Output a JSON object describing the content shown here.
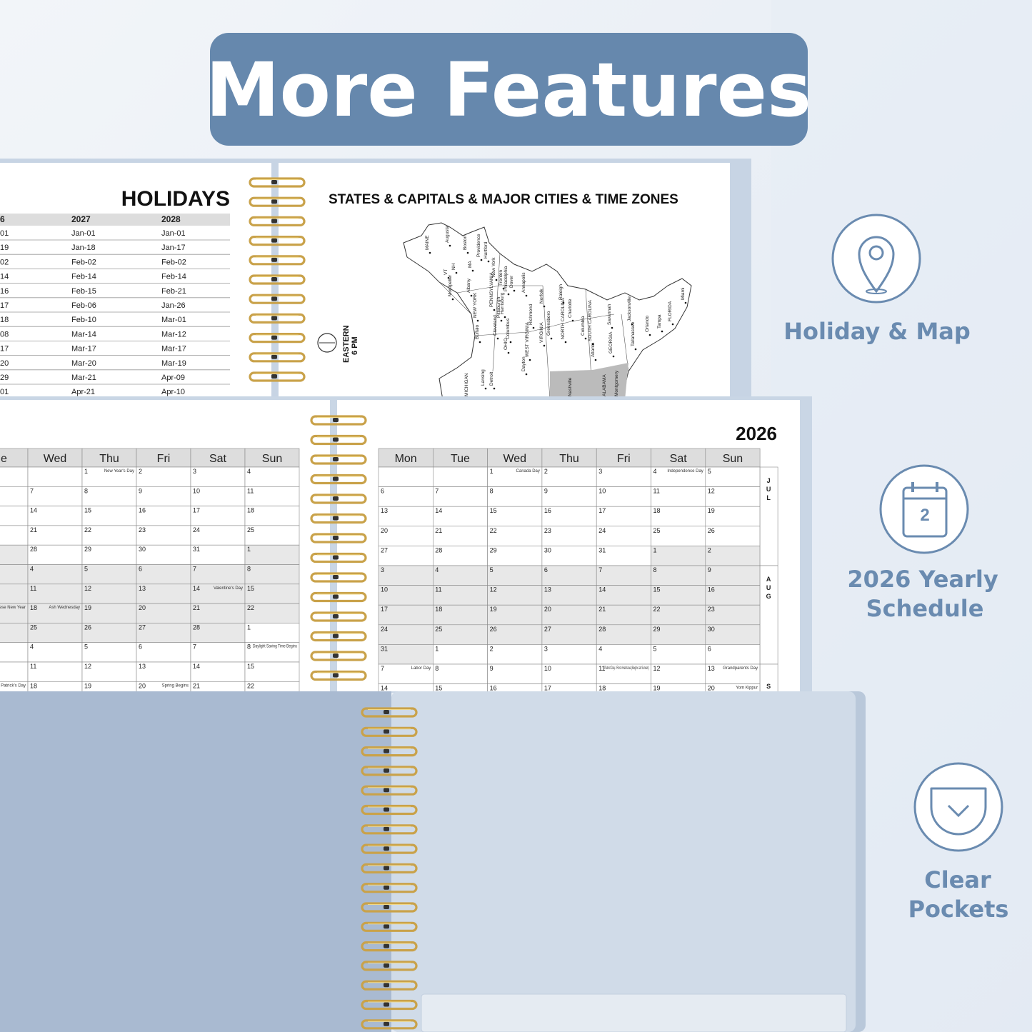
{
  "title": "More Features",
  "holidays": {
    "title": "HOLIDAYS",
    "header": [
      "6",
      "2027",
      "2028"
    ],
    "rows": [
      [
        "01",
        "Jan-01",
        "Jan-01"
      ],
      [
        "19",
        "Jan-18",
        "Jan-17"
      ],
      [
        "02",
        "Feb-02",
        "Feb-02"
      ],
      [
        "14",
        "Feb-14",
        "Feb-14"
      ],
      [
        "16",
        "Feb-15",
        "Feb-21"
      ],
      [
        "17",
        "Feb-06",
        "Jan-26"
      ],
      [
        "18",
        "Feb-10",
        "Mar-01"
      ],
      [
        "08",
        "Mar-14",
        "Mar-12"
      ],
      [
        "17",
        "Mar-17",
        "Mar-17"
      ],
      [
        "20",
        "Mar-20",
        "Mar-19"
      ],
      [
        "29",
        "Mar-21",
        "Apr-09"
      ],
      [
        "01",
        "Apr-21",
        "Apr-10"
      ]
    ]
  },
  "map": {
    "title": "STATES & CAPITALS & MAJOR CITIES & TIME ZONES",
    "zone": [
      "EASTERN",
      "6 PM"
    ],
    "labels": [
      "MAINE",
      "VT",
      "NH",
      "MA",
      "NEW YORK",
      "PENNSYLVANIA",
      "Augusta",
      "Boston",
      "Providence",
      "Hartford",
      "Albany",
      "Montpelier",
      "Buffalo",
      "New York",
      "Trenton",
      "Philadelphia",
      "Dover",
      "Annapolis",
      "Richmond",
      "Norfolk",
      "Raleigh",
      "Charlotte",
      "Greensboro",
      "VIRGINIA",
      "NORTH CAROLINA",
      "Columbia",
      "SOUTH CAROLINA",
      "Savannah",
      "GEORGIA",
      "Atlanta",
      "Jacksonville",
      "Tallahassee",
      "Orlando",
      "Tampa",
      "FLORIDA",
      "Miami",
      "Cleveland",
      "Columbus",
      "Pittsburgh",
      "Harrisburg",
      "OHIO",
      "WEST VIRGINIA",
      "Dayton",
      "Lansing",
      "Detroit",
      "MICHIGAN",
      "Nashville",
      "ALABAMA",
      "Montgomery"
    ]
  },
  "calendar_left": {
    "weekdays": [
      "ue",
      "Wed",
      "Thu",
      "Fri",
      "Sat",
      "Sun"
    ],
    "rows": [
      {
        "days": [
          null,
          null,
          1,
          2,
          3,
          4
        ],
        "notes": [
          null,
          null,
          "New Year's Day",
          null,
          null,
          null
        ]
      },
      {
        "days": [
          null,
          7,
          8,
          9,
          10,
          11
        ]
      },
      {
        "days": [
          null,
          14,
          15,
          16,
          17,
          18
        ]
      },
      {
        "days": [
          null,
          21,
          22,
          23,
          24,
          25
        ]
      },
      {
        "days": [
          null,
          28,
          29,
          30,
          31,
          1
        ],
        "shaded": [
          true,
          false,
          false,
          false,
          false,
          true
        ]
      },
      {
        "days": [
          null,
          4,
          5,
          6,
          7,
          8
        ],
        "shaded": true
      },
      {
        "days": [
          null,
          11,
          12,
          13,
          14,
          15
        ],
        "notes": [
          null,
          null,
          null,
          null,
          "Valentine's Day",
          null
        ],
        "shaded": true
      },
      {
        "days": [
          null,
          18,
          19,
          20,
          21,
          22
        ],
        "notes": [
          "ese New Year",
          "Ash Wednesday",
          null,
          null,
          null,
          null
        ],
        "shaded": true
      },
      {
        "days": [
          null,
          25,
          26,
          27,
          28,
          1
        ],
        "shaded": [
          true,
          true,
          true,
          true,
          true,
          false
        ]
      },
      {
        "days": [
          null,
          4,
          5,
          6,
          7,
          8
        ],
        "notes": [
          null,
          null,
          null,
          null,
          null,
          "Daylight Saving Time Begins"
        ]
      },
      {
        "days": [
          null,
          11,
          12,
          13,
          14,
          15
        ]
      },
      {
        "days": [
          null,
          18,
          19,
          20,
          21,
          22
        ],
        "notes": [
          "Patrick's Day",
          null,
          null,
          "Spring Begins",
          null,
          null
        ]
      }
    ]
  },
  "calendar_right": {
    "year": "2026",
    "weekdays": [
      "Mon",
      "Tue",
      "Wed",
      "Thu",
      "Fri",
      "Sat",
      "Sun"
    ],
    "rows": [
      {
        "days": [
          null,
          null,
          1,
          2,
          3,
          4,
          5
        ],
        "notes": [
          null,
          null,
          "Canada Day",
          null,
          null,
          "Independence Day",
          null
        ]
      },
      {
        "days": [
          6,
          7,
          8,
          9,
          10,
          11,
          12
        ]
      },
      {
        "days": [
          13,
          14,
          15,
          16,
          17,
          18,
          19
        ]
      },
      {
        "days": [
          20,
          21,
          22,
          23,
          24,
          25,
          26
        ]
      },
      {
        "days": [
          27,
          28,
          29,
          30,
          31,
          1,
          2
        ],
        "shaded": [
          false,
          false,
          false,
          false,
          false,
          true,
          true
        ]
      },
      {
        "days": [
          3,
          4,
          5,
          6,
          7,
          8,
          9
        ],
        "shaded": true
      },
      {
        "days": [
          10,
          11,
          12,
          13,
          14,
          15,
          16
        ],
        "shaded": true
      },
      {
        "days": [
          17,
          18,
          19,
          20,
          21,
          22,
          23
        ],
        "shaded": true
      },
      {
        "days": [
          24,
          25,
          26,
          27,
          28,
          29,
          30
        ],
        "shaded": true
      },
      {
        "days": [
          31,
          1,
          2,
          3,
          4,
          5,
          6
        ],
        "shaded": [
          true,
          false,
          false,
          false,
          false,
          false,
          false
        ]
      },
      {
        "days": [
          7,
          8,
          9,
          10,
          11,
          12,
          13
        ],
        "notes": [
          "Labor Day",
          null,
          null,
          null,
          "Patriot Day / Rosh Hashana (Begins at Sunset)",
          null,
          "Grandparents Day"
        ]
      },
      {
        "days": [
          14,
          15,
          16,
          17,
          18,
          19,
          20
        ],
        "notes": [
          null,
          null,
          null,
          null,
          null,
          null,
          "Yom Kippur"
        ]
      }
    ],
    "tabs": [
      "JUL",
      "AUG",
      "S"
    ]
  },
  "features": [
    {
      "lines": [
        "Holiday & Map"
      ]
    },
    {
      "lines": [
        "2026 Yearly",
        "Schedule"
      ],
      "icon_text": "2"
    },
    {
      "lines": [
        "Clear",
        "Pockets"
      ]
    }
  ]
}
